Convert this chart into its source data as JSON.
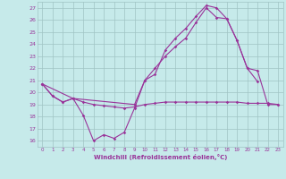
{
  "xlabel": "Windchill (Refroidissement éolien,°C)",
  "xlim": [
    -0.5,
    23.5
  ],
  "ylim": [
    15.5,
    27.5
  ],
  "yticks": [
    16,
    17,
    18,
    19,
    20,
    21,
    22,
    23,
    24,
    25,
    26,
    27
  ],
  "xticks": [
    0,
    1,
    2,
    3,
    4,
    5,
    6,
    7,
    8,
    9,
    10,
    11,
    12,
    13,
    14,
    15,
    16,
    17,
    18,
    19,
    20,
    21,
    22,
    23
  ],
  "background_color": "#c6eaea",
  "grid_color": "#a0c4c4",
  "line_color": "#993399",
  "curve1": {
    "x": [
      0,
      1,
      2,
      3,
      4,
      5,
      6,
      7,
      8,
      9,
      10,
      11,
      12,
      13,
      14,
      15,
      16,
      17,
      18,
      19,
      20,
      21
    ],
    "y": [
      20.7,
      19.7,
      19.2,
      19.5,
      18.1,
      16.0,
      16.5,
      16.2,
      16.7,
      18.7,
      21.0,
      21.5,
      23.5,
      24.5,
      25.3,
      26.3,
      27.2,
      27.0,
      26.1,
      24.3,
      22.0,
      20.9
    ]
  },
  "curve2": {
    "x": [
      0,
      1,
      2,
      3,
      4,
      5,
      6,
      7,
      8,
      9,
      10,
      11,
      12,
      13,
      14,
      15,
      16,
      17,
      18,
      19,
      20,
      21,
      22,
      23
    ],
    "y": [
      20.7,
      19.7,
      19.2,
      19.5,
      19.2,
      19.0,
      18.9,
      18.8,
      18.7,
      18.8,
      19.0,
      19.1,
      19.2,
      19.2,
      19.2,
      19.2,
      19.2,
      19.2,
      19.2,
      19.2,
      19.1,
      19.1,
      19.1,
      19.0
    ]
  },
  "curve3": {
    "x": [
      0,
      3,
      9,
      10,
      11,
      12,
      13,
      14,
      15,
      16,
      17,
      18,
      19,
      20,
      21,
      22,
      23
    ],
    "y": [
      20.7,
      19.5,
      19.0,
      21.0,
      22.0,
      23.0,
      23.8,
      24.5,
      25.8,
      27.0,
      26.2,
      26.1,
      24.3,
      22.0,
      21.8,
      19.0,
      19.0
    ]
  }
}
